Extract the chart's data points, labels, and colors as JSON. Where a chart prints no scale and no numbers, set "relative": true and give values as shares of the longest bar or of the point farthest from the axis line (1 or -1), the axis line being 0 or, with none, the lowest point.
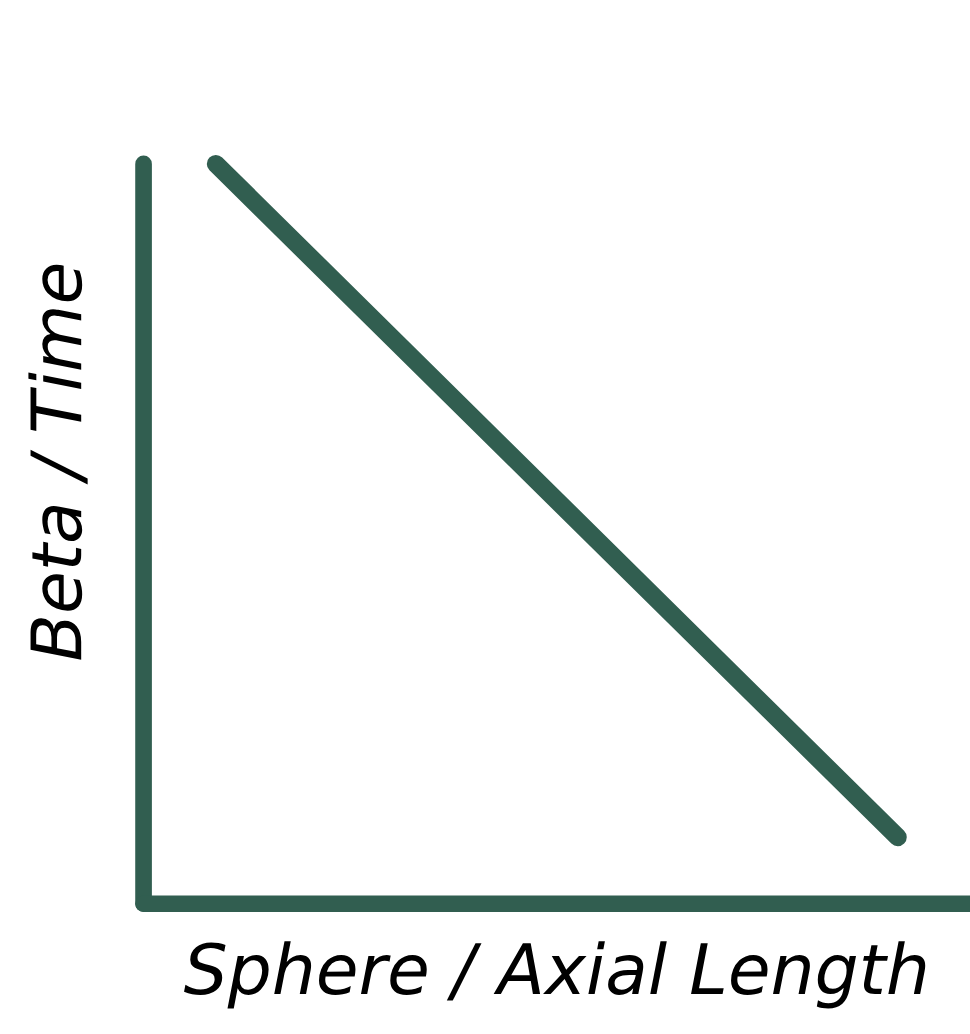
{
  "chart_data": {
    "type": "line",
    "relative": true,
    "xlabel": "Sphere / Axial Length",
    "ylabel": "Beta / Time",
    "categories": [
      null,
      null
    ],
    "values": [
      1,
      0.09
    ],
    "color": "#315e50"
  }
}
